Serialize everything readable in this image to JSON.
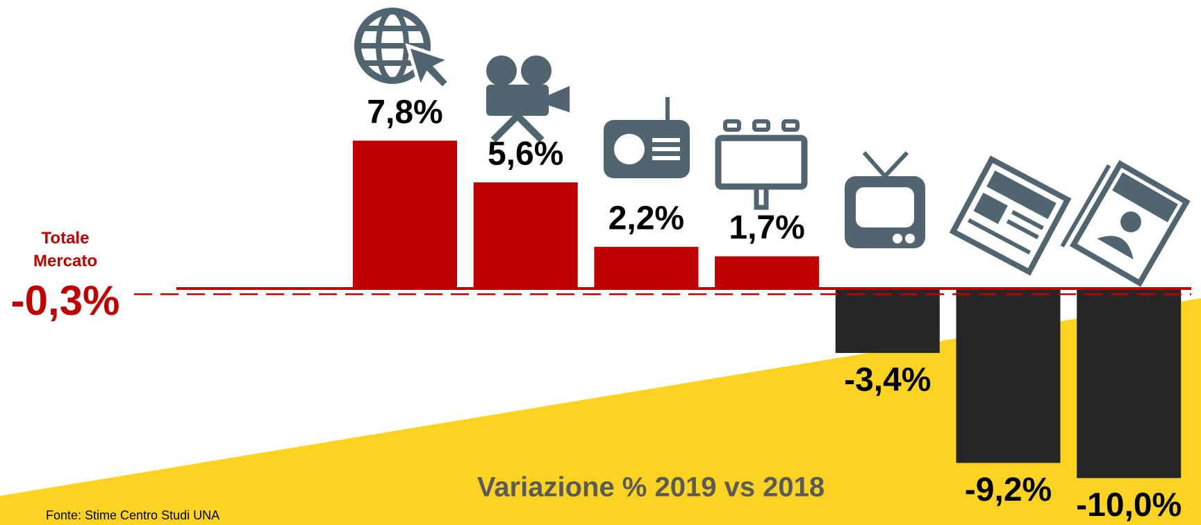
{
  "chart_data": {
    "type": "bar",
    "title": "Variazione % 2019 vs 2018",
    "source": "Fonte: Stime Centro Studi UNA",
    "categories": [
      null,
      null,
      null,
      null,
      null,
      null,
      null
    ],
    "values": [
      7.8,
      5.6,
      2.2,
      1.7,
      -3.4,
      -9.2,
      -10.0
    ],
    "value_labels": [
      "7,8%",
      "5,6%",
      "2,2%",
      "1,7%",
      "-3,4%",
      "-9,2%",
      "-10,0%"
    ],
    "positive_color": "#c00000",
    "negative_color": "#262626",
    "total": {
      "name": "Totale Mercato",
      "value": -0.3,
      "label": "-0,3%",
      "color": "#c00000"
    },
    "ylim": [
      -12,
      12
    ]
  }
}
